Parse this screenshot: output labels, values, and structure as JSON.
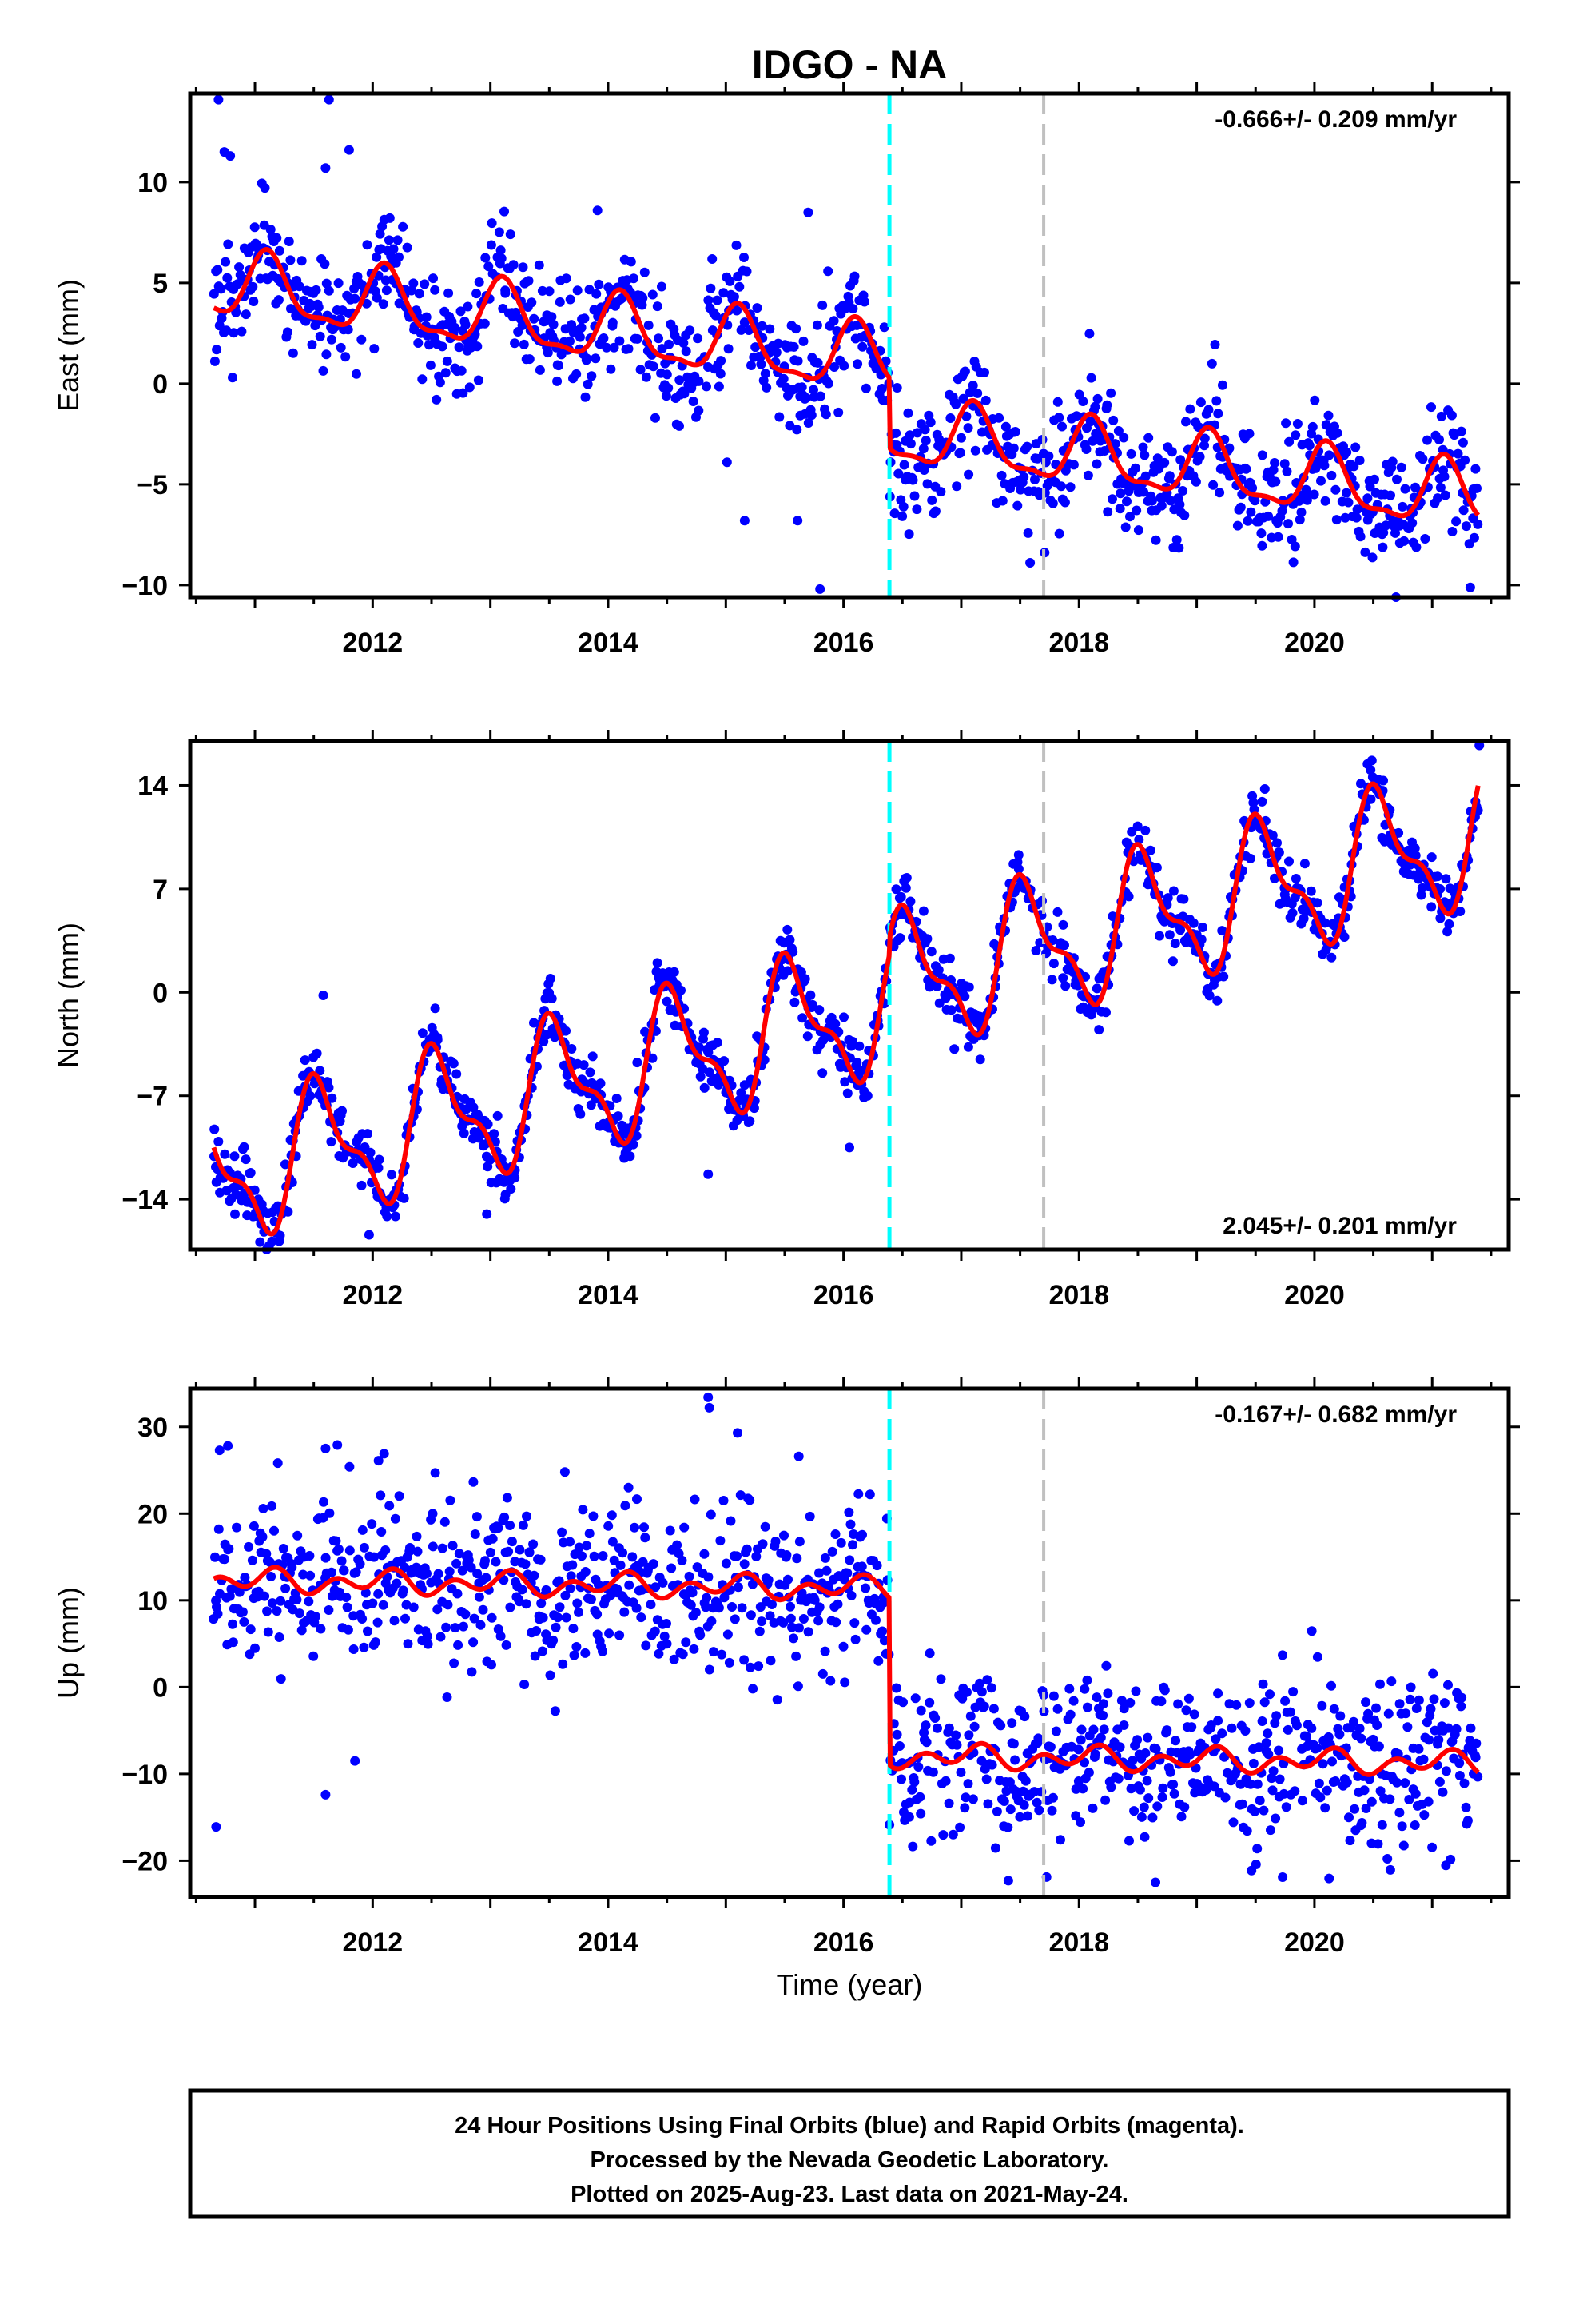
{
  "title": "IDGO - NA",
  "footer": {
    "line1": "24 Hour Positions Using Final Orbits (blue) and Rapid Orbits (magenta).",
    "line2": "Processed by the Nevada Geodetic Laboratory.",
    "line3": "Plotted on 2025-Aug-23. Last data on 2021-May-24."
  },
  "colors": {
    "data_points": "#0000ff",
    "model_fit": "#ff0000",
    "equipment_change": "#00ffff",
    "other_event": "#c0c0c0",
    "frame": "#000000"
  },
  "chart_data": [
    {
      "type": "scatter",
      "component": "east",
      "ylabel": "East (mm)",
      "xlabel": "",
      "rate_label": "-0.666+/- 0.209 mm/yr",
      "rate_position": "top-right",
      "xlim": [
        2010.45,
        2021.65
      ],
      "ylim": [
        -10.6,
        14.4
      ],
      "xticks": [
        2012,
        2014,
        2016,
        2018,
        2020
      ],
      "yticks": [
        -10,
        -5,
        0,
        5,
        10
      ],
      "events": [
        {
          "x": 2016.39,
          "kind": "equipment_change"
        },
        {
          "x": 2017.7,
          "kind": "other_event"
        }
      ],
      "model": {
        "rate": -0.666,
        "ref_year": 2016.0,
        "offset_at_ref": 1.3,
        "annual_sin": 1.0,
        "annual_cos": 1.2,
        "semiannual_sin": 0.5,
        "semiannual_cos": 0.2,
        "steps": [
          {
            "x": 2016.39,
            "size": -3.5
          }
        ],
        "start": 2010.65,
        "end": 2021.39
      },
      "scatter_sigma": 1.4,
      "outliers": [
        {
          "x": 2010.69,
          "y": 14.1
        },
        {
          "x": 2010.74,
          "y": 11.5
        },
        {
          "x": 2010.79,
          "y": 11.3
        },
        {
          "x": 2011.63,
          "y": 14.1
        },
        {
          "x": 2011.8,
          "y": 11.6
        },
        {
          "x": 2011.6,
          "y": 10.7
        },
        {
          "x": 2015.01,
          "y": -3.9
        },
        {
          "x": 2015.16,
          "y": -6.8
        },
        {
          "x": 2015.61,
          "y": -6.8
        },
        {
          "x": 2015.8,
          "y": -10.2
        },
        {
          "x": 2015.7,
          "y": 8.5
        },
        {
          "x": 2013.91,
          "y": 8.6
        }
      ]
    },
    {
      "type": "scatter",
      "component": "north",
      "ylabel": "North (mm)",
      "xlabel": "",
      "rate_label": "2.045+/- 0.201 mm/yr",
      "rate_position": "bottom-right",
      "xlim": [
        2010.45,
        2021.65
      ],
      "ylim": [
        -17.4,
        17.0
      ],
      "xticks": [
        2012,
        2014,
        2016,
        2018,
        2020
      ],
      "yticks": [
        -14,
        -7,
        0,
        7,
        14
      ],
      "events": [
        {
          "x": 2016.39,
          "kind": "equipment_change"
        },
        {
          "x": 2017.7,
          "kind": "other_event"
        }
      ],
      "model": {
        "rate": 2.045,
        "ref_year": 2016.0,
        "offset_at_ref": -1.6,
        "annual_sin": -1.4,
        "annual_cos": -3.9,
        "semiannual_sin": -1.0,
        "semiannual_cos": 1.4,
        "steps": [
          {
            "x": 2016.39,
            "size": 1.2
          }
        ],
        "start": 2010.65,
        "end": 2021.39
      },
      "scatter_sigma": 1.0,
      "outliers": [
        {
          "x": 2011.58,
          "y": -0.2
        },
        {
          "x": 2021.4,
          "y": 16.7
        },
        {
          "x": 2012.97,
          "y": -15.0
        },
        {
          "x": 2014.85,
          "y": -12.3
        },
        {
          "x": 2016.05,
          "y": -10.5
        },
        {
          "x": 2011.97,
          "y": -16.4
        }
      ]
    },
    {
      "type": "scatter",
      "component": "up",
      "ylabel": "Up (mm)",
      "xlabel": "Time (year)",
      "rate_label": "-0.167+/- 0.682 mm/yr",
      "rate_position": "top-right",
      "xlim": [
        2010.45,
        2021.65
      ],
      "ylim": [
        -24.2,
        34.4
      ],
      "xticks": [
        2012,
        2014,
        2016,
        2018,
        2020
      ],
      "yticks": [
        -20,
        -10,
        0,
        10,
        20,
        30
      ],
      "events": [
        {
          "x": 2016.39,
          "kind": "equipment_change"
        },
        {
          "x": 2017.7,
          "kind": "other_event"
        }
      ],
      "model": {
        "rate": -0.167,
        "ref_year": 2016.0,
        "offset_at_ref": 11.4,
        "annual_sin": 0.4,
        "annual_cos": 0.6,
        "semiannual_sin": 0.7,
        "semiannual_cos": -0.7,
        "steps": [
          {
            "x": 2016.39,
            "size": -19.3
          }
        ],
        "start": 2010.65,
        "end": 2021.39
      },
      "scatter_sigma": 4.6,
      "outliers": [
        {
          "x": 2010.7,
          "y": 27.3
        },
        {
          "x": 2010.77,
          "y": 27.8
        },
        {
          "x": 2010.67,
          "y": -16.1
        },
        {
          "x": 2014.85,
          "y": 33.4
        },
        {
          "x": 2014.86,
          "y": 32.2
        },
        {
          "x": 2015.1,
          "y": 29.3
        },
        {
          "x": 2011.6,
          "y": -12.4
        },
        {
          "x": 2011.85,
          "y": -8.5
        },
        {
          "x": 2017.4,
          "y": -22.3
        },
        {
          "x": 2018.65,
          "y": -22.5
        },
        {
          "x": 2019.73,
          "y": -21.9
        },
        {
          "x": 2011.6,
          "y": 27.5
        },
        {
          "x": 2011.7,
          "y": 27.9
        },
        {
          "x": 2012.05,
          "y": 26.1
        },
        {
          "x": 2015.62,
          "y": 26.6
        }
      ]
    }
  ]
}
